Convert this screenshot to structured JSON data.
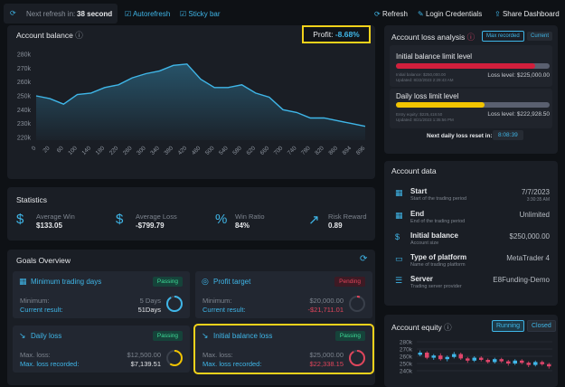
{
  "top_bar": {
    "refresh_label": "Next refresh in:",
    "refresh_value": "38 second",
    "autorefresh": "Autorefresh",
    "sticky_bar": "Sticky bar",
    "refresh": "Refresh",
    "login_credentials": "Login Credentials",
    "share_dashboard": "Share Dashboard"
  },
  "chart_data": [
    {
      "type": "line",
      "title": "Account balance",
      "profit_label": "Profit:",
      "profit_value": "-8.68%",
      "categories": [
        "0",
        "20",
        "60",
        "100",
        "140",
        "180",
        "220",
        "260",
        "300",
        "340",
        "380",
        "420",
        "460",
        "500",
        "540",
        "580",
        "620",
        "660",
        "700",
        "740",
        "780",
        "820",
        "860",
        "894",
        "896"
      ],
      "values": [
        250000,
        248000,
        244000,
        251000,
        252000,
        256000,
        258000,
        263000,
        266000,
        268000,
        272000,
        273000,
        262000,
        256000,
        256000,
        258000,
        252000,
        249000,
        240000,
        238000,
        234000,
        234000,
        232000,
        230000,
        228000
      ],
      "color": "#3fb6e8",
      "ylim": [
        218000,
        282000
      ],
      "yticks": [
        {
          "value": 220000,
          "label": "220k"
        },
        {
          "value": 230000,
          "label": "230k"
        },
        {
          "value": 240000,
          "label": "240k"
        },
        {
          "value": 250000,
          "label": "250k"
        },
        {
          "value": 260000,
          "label": "260k"
        },
        {
          "value": 270000,
          "label": "270k"
        },
        {
          "value": 280000,
          "label": "280k"
        }
      ],
      "grid": false
    },
    {
      "type": "candlestick",
      "title": "Account equity",
      "buttons": [
        "Running",
        "Closed"
      ],
      "open": [
        262000,
        265000,
        258000,
        261000,
        256000,
        259000,
        263000,
        257000,
        254000,
        258000,
        255000,
        252000,
        256000,
        253000,
        250000,
        254000,
        251000,
        248000,
        252000,
        249000
      ],
      "close": [
        265000,
        258000,
        261000,
        256000,
        259000,
        263000,
        257000,
        254000,
        258000,
        255000,
        252000,
        256000,
        253000,
        250000,
        254000,
        251000,
        248000,
        252000,
        249000,
        246000
      ],
      "high": [
        268000,
        267000,
        263000,
        264000,
        261000,
        266000,
        265000,
        259000,
        260000,
        260000,
        257000,
        258000,
        258000,
        255000,
        256000,
        256000,
        253000,
        254000,
        254000,
        251000
      ],
      "low": [
        260000,
        256000,
        255000,
        254000,
        253000,
        257000,
        255000,
        251000,
        252000,
        253000,
        250000,
        250000,
        251000,
        247000,
        248000,
        249000,
        245000,
        246000,
        247000,
        243000
      ],
      "up_color": "#3fb6e8",
      "down_color": "#e0456b",
      "ylim": [
        240000,
        280000
      ],
      "yticks": [
        {
          "value": 240000,
          "label": "240k"
        },
        {
          "value": 250000,
          "label": "250k"
        },
        {
          "value": 260000,
          "label": "260k"
        },
        {
          "value": 270000,
          "label": "270k"
        },
        {
          "value": 280000,
          "label": "280k"
        }
      ]
    }
  ],
  "statistics": {
    "title": "Statistics",
    "items": [
      {
        "label": "Average Win",
        "value": "$133.05"
      },
      {
        "label": "Average Loss",
        "value": "-$799.79"
      },
      {
        "label": "Win Ratio",
        "value": "84%"
      },
      {
        "label": "Risk Reward",
        "value": "0.89"
      }
    ]
  },
  "goals": {
    "title": "Goals Overview",
    "cards": [
      {
        "title": "Minimum trading days",
        "status": "Passing",
        "rows": [
          {
            "label": "Minimum:",
            "value": "5 Days"
          },
          {
            "label": "Current result:",
            "value": "51Days"
          }
        ]
      },
      {
        "title": "Profit target",
        "status": "Pending",
        "rows": [
          {
            "label": "Minimum:",
            "value": "$20,000.00"
          },
          {
            "label": "Current result:",
            "value": "-$21,711.01"
          }
        ]
      },
      {
        "title": "Daily loss",
        "status": "Passing",
        "rows": [
          {
            "label": "Max. loss:",
            "value": "$12,500.00"
          },
          {
            "label": "Max. loss recorded:",
            "value": "$7,139.51"
          }
        ]
      },
      {
        "title": "Initial balance loss",
        "status": "Passing",
        "rows": [
          {
            "label": "Max. loss:",
            "value": "$25,000.00"
          },
          {
            "label": "Max. loss recorded:",
            "value": "$22,338.15"
          }
        ]
      }
    ]
  },
  "loss_analysis": {
    "title": "Account loss analysis",
    "tabs": [
      "Max recorded",
      "Current"
    ],
    "initial": {
      "title": "Initial balance limit level",
      "base": "Initial balance: $250,000.00",
      "updated": "Updated: 8/22/2023 2:29:43 AM",
      "loss_level": "Loss level: $225,000.00"
    },
    "daily": {
      "title": "Daily loss limit level",
      "base": "Entry equity: $225,418.50",
      "updated": "Updated: 8/21/2023 1:35:56 PM",
      "loss_level": "Loss level: $222,928.50"
    },
    "reset_label": "Next daily loss reset in:",
    "reset_value": "8:08:39"
  },
  "account_data": {
    "title": "Account data",
    "rows": [
      {
        "title": "Start",
        "sub": "Start of the trading period",
        "value": "7/7/2023",
        "extra": "3:30:35 AM"
      },
      {
        "title": "End",
        "sub": "End of the trading period",
        "value": "Unlimited"
      },
      {
        "title": "Initial balance",
        "sub": "Account size",
        "value": "$250,000.00"
      },
      {
        "title": "Type of platform",
        "sub": "Name of trading platform",
        "value": "MetaTrader 4"
      },
      {
        "title": "Server",
        "sub": "Trading server provider",
        "value": "E8Funding-Demo"
      }
    ]
  }
}
